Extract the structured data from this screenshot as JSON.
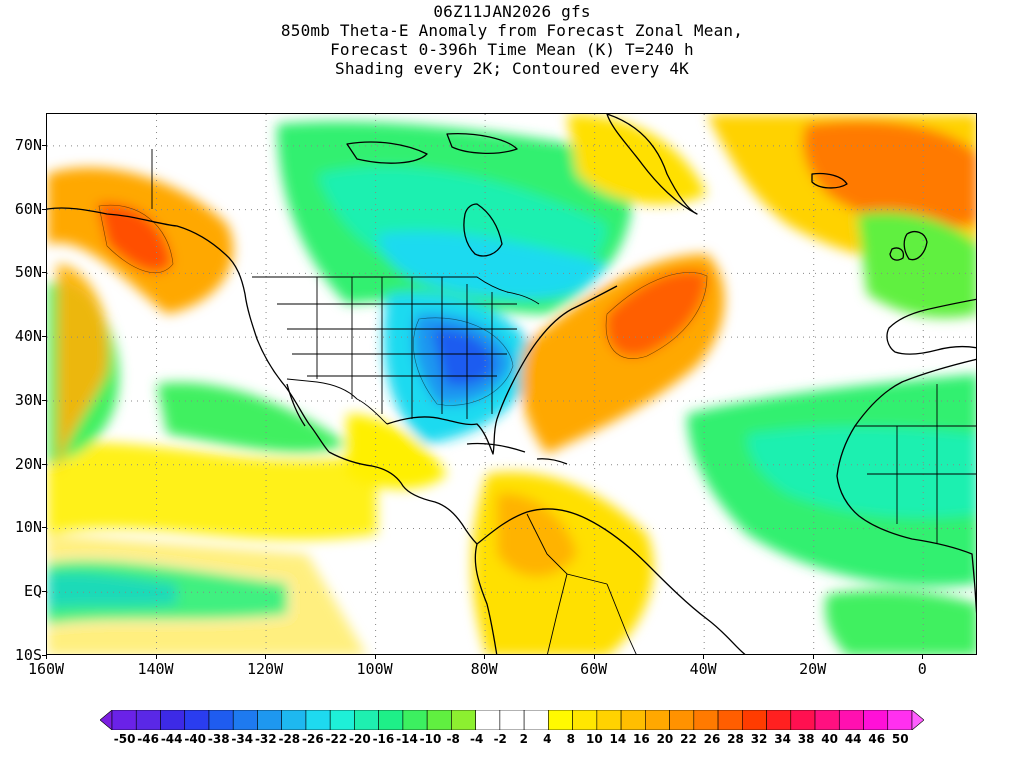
{
  "title": {
    "line1": "06Z11JAN2026 gfs",
    "line2": "850mb Theta-E Anomaly from Forecast Zonal Mean,",
    "line3": "Forecast 0-396h Time Mean (K) T=240 h",
    "line4": "Shading every 2K; Contoured every 4K"
  },
  "map": {
    "lon_range": [
      -160,
      10
    ],
    "lat_range": [
      -10,
      75
    ],
    "lat_labels": [
      "70N",
      "60N",
      "50N",
      "40N",
      "30N",
      "20N",
      "10N",
      "EQ",
      "10S"
    ],
    "lat_values": [
      70,
      60,
      50,
      40,
      30,
      20,
      10,
      0,
      -10
    ],
    "lon_labels": [
      "160W",
      "140W",
      "120W",
      "100W",
      "80W",
      "60W",
      "40W",
      "20W",
      "0"
    ],
    "lon_values": [
      -160,
      -140,
      -120,
      -100,
      -80,
      -60,
      -40,
      -20,
      0
    ],
    "gridlines": "dotted",
    "regions": [
      {
        "name": "cold-canada",
        "anomaly": -20
      },
      {
        "name": "cold-southeast-us",
        "anomaly": -36
      },
      {
        "name": "warm-alaska",
        "anomaly": 28
      },
      {
        "name": "warm-north-atlantic",
        "anomaly": 26
      },
      {
        "name": "warm-arctic-east",
        "anomaly": 20
      },
      {
        "name": "cool-sahara",
        "anomaly": -16
      },
      {
        "name": "cool-eastern-pacific",
        "anomaly": -12
      }
    ]
  },
  "colorbar": {
    "labels": [
      "-50",
      "-46",
      "-44",
      "-40",
      "-38",
      "-34",
      "-32",
      "-28",
      "-26",
      "-22",
      "-20",
      "-16",
      "-14",
      "-10",
      "-8",
      "-4",
      "-2",
      "2",
      "4",
      "8",
      "10",
      "14",
      "16",
      "20",
      "22",
      "26",
      "28",
      "32",
      "34",
      "38",
      "40",
      "44",
      "46",
      "50"
    ],
    "colors": [
      "#7b1fe0",
      "#6a22e8",
      "#5a28e6",
      "#3d2ae6",
      "#2a3df0",
      "#1f5cf0",
      "#1e7af0",
      "#1e98f0",
      "#1eb8f0",
      "#1edaf0",
      "#1ef0d8",
      "#1ef0b0",
      "#1ef088",
      "#3cf060",
      "#60f040",
      "#8cf030",
      "#ffffff",
      "#ffffff",
      "#ffffff",
      "#fffa00",
      "#ffe600",
      "#ffd200",
      "#ffbe00",
      "#ffa800",
      "#ff9200",
      "#ff7a00",
      "#ff5e00",
      "#ff3c00",
      "#ff2020",
      "#ff1050",
      "#ff1080",
      "#ff10b0",
      "#ff10d8",
      "#ff30f0",
      "#ff60ff"
    ]
  }
}
